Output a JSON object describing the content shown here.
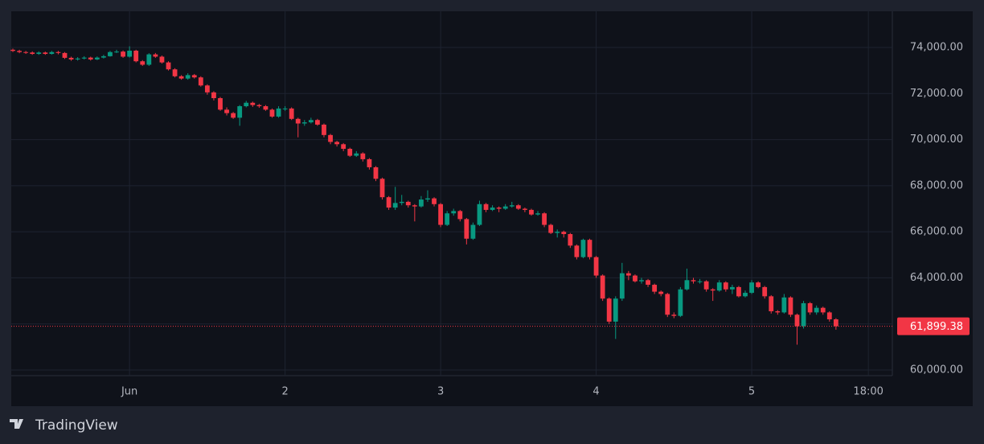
{
  "chart_data": {
    "type": "candlestick",
    "x": [
      -18,
      -17,
      -16,
      -15,
      -14,
      -13,
      -12,
      -11,
      -10,
      -9,
      -8,
      -7,
      -6,
      -5,
      -4,
      -3,
      -2,
      -1,
      0,
      1,
      2,
      3,
      4,
      5,
      6,
      7,
      8,
      9,
      10,
      11,
      12,
      13,
      14,
      15,
      16,
      17,
      18,
      19,
      20,
      21,
      22,
      23,
      24,
      25,
      26,
      27,
      28,
      29,
      30,
      31,
      32,
      33,
      34,
      35,
      36,
      37,
      38,
      39,
      40,
      41,
      42,
      43,
      44,
      45,
      46,
      47,
      48,
      49,
      50,
      51,
      52,
      53,
      54,
      55,
      56,
      57,
      58,
      59,
      60,
      61,
      62,
      63,
      64,
      65,
      66,
      67,
      68,
      69,
      70,
      71,
      72,
      73,
      74,
      75,
      76,
      77,
      78,
      79,
      80,
      81,
      82,
      83,
      84,
      85,
      86,
      87,
      88,
      89,
      90,
      91,
      92,
      93,
      94,
      95,
      96,
      97,
      98,
      99,
      100,
      101,
      102,
      103,
      104,
      105,
      106,
      107,
      108,
      109
    ],
    "open": [
      73900,
      73850,
      73800,
      73780,
      73720,
      73780,
      73720,
      73800,
      73760,
      73550,
      73480,
      73520,
      73560,
      73480,
      73560,
      73620,
      73800,
      73820,
      73600,
      73860,
      73400,
      73250,
      73700,
      73600,
      73350,
      73050,
      72750,
      72650,
      72800,
      72700,
      72350,
      72050,
      71800,
      71300,
      71150,
      70950,
      71450,
      71600,
      71500,
      71450,
      71300,
      71000,
      71350,
      71350,
      70900,
      70700,
      70750,
      70850,
      70650,
      70200,
      69900,
      69800,
      69600,
      69300,
      69400,
      69150,
      68800,
      68300,
      67500,
      67050,
      67250,
      67300,
      67150,
      67100,
      67400,
      67450,
      67200,
      66300,
      66800,
      66900,
      66550,
      65700,
      66300,
      67200,
      66950,
      67050,
      67000,
      67100,
      67150,
      67000,
      66950,
      66750,
      66800,
      66300,
      65950,
      66000,
      65900,
      65400,
      64900,
      65650,
      64900,
      64100,
      63100,
      62100,
      63100,
      64200,
      64100,
      63850,
      63900,
      63700,
      63400,
      63300,
      62400,
      62350,
      63500,
      63900,
      63850,
      63850,
      63500,
      63450,
      63800,
      63500,
      63600,
      63200,
      63350,
      63800,
      63600,
      63200,
      62550,
      62500,
      63150,
      62400,
      61900,
      62900,
      62500,
      62700,
      62500,
      62200
    ],
    "high": [
      73950,
      73900,
      73850,
      73830,
      73830,
      73820,
      73850,
      73850,
      73800,
      73600,
      73580,
      73620,
      73600,
      73610,
      73680,
      73850,
      73900,
      73870,
      74050,
      73900,
      73450,
      73750,
      73760,
      73650,
      73400,
      73100,
      72800,
      72880,
      72850,
      72750,
      72400,
      72100,
      71850,
      71400,
      71200,
      71500,
      71680,
      71650,
      71550,
      71500,
      71350,
      71450,
      71450,
      71400,
      70950,
      70850,
      70950,
      70900,
      70700,
      70250,
      69950,
      69850,
      69650,
      69500,
      69450,
      69200,
      68850,
      68350,
      67550,
      67950,
      67600,
      67350,
      67200,
      67550,
      67800,
      67500,
      67250,
      66900,
      67000,
      66950,
      66600,
      66400,
      67350,
      67250,
      67150,
      67100,
      67200,
      67300,
      67200,
      67050,
      67000,
      66900,
      66850,
      66350,
      66100,
      66050,
      65950,
      65450,
      65700,
      65700,
      64950,
      64150,
      63150,
      63200,
      64650,
      64300,
      64150,
      64000,
      63950,
      63750,
      63450,
      63350,
      62500,
      63600,
      64400,
      64000,
      63950,
      63900,
      63550,
      63900,
      63850,
      63700,
      63650,
      63450,
      63900,
      63850,
      63650,
      63250,
      62600,
      63300,
      63200,
      62450,
      63000,
      62950,
      62800,
      62750,
      62550,
      62250
    ],
    "low": [
      73800,
      73750,
      73720,
      73680,
      73680,
      73680,
      73690,
      73700,
      73500,
      73420,
      73430,
      73480,
      73430,
      73450,
      73520,
      73600,
      73760,
      73550,
      73560,
      73350,
      73200,
      73200,
      73550,
      73300,
      73000,
      72700,
      72600,
      72600,
      72650,
      72300,
      71950,
      71700,
      71250,
      71050,
      70900,
      70600,
      71400,
      71420,
      71380,
      71250,
      70950,
      70950,
      71250,
      70850,
      70100,
      70600,
      70700,
      70600,
      70100,
      69800,
      69700,
      69500,
      69250,
      69250,
      69050,
      68700,
      68200,
      67400,
      66950,
      66950,
      67150,
      67050,
      66450,
      67050,
      67300,
      67100,
      66200,
      66250,
      66700,
      66450,
      65450,
      65650,
      66250,
      66850,
      66900,
      66850,
      66950,
      67050,
      66950,
      66850,
      66700,
      66700,
      66200,
      65900,
      65750,
      65750,
      65300,
      64800,
      64850,
      64800,
      64000,
      63000,
      62000,
      61350,
      63000,
      63900,
      63800,
      63750,
      63600,
      63300,
      63200,
      62300,
      62250,
      62300,
      63450,
      63750,
      63750,
      63400,
      63000,
      63400,
      63400,
      63300,
      63150,
      63150,
      63300,
      63550,
      63100,
      62450,
      62400,
      62450,
      62300,
      61100,
      61800,
      62400,
      62400,
      62400,
      62100,
      61750
    ],
    "close": [
      73850,
      73800,
      73780,
      73720,
      73780,
      73720,
      73800,
      73760,
      73550,
      73480,
      73520,
      73560,
      73480,
      73560,
      73620,
      73800,
      73820,
      73600,
      73860,
      73400,
      73250,
      73700,
      73600,
      73350,
      73050,
      72750,
      72650,
      72800,
      72700,
      72350,
      72050,
      71800,
      71300,
      71150,
      70950,
      71450,
      71600,
      71500,
      71450,
      71300,
      71000,
      71350,
      71350,
      70900,
      70700,
      70750,
      70850,
      70650,
      70200,
      69900,
      69800,
      69600,
      69300,
      69400,
      69150,
      68800,
      68300,
      67500,
      67050,
      67250,
      67300,
      67150,
      67100,
      67400,
      67450,
      67200,
      66300,
      66800,
      66900,
      66550,
      65700,
      66300,
      67200,
      66950,
      67050,
      67000,
      67100,
      67150,
      67000,
      66950,
      66750,
      66800,
      66300,
      65950,
      66000,
      65900,
      65400,
      64900,
      65650,
      64900,
      64100,
      63100,
      62100,
      63100,
      64200,
      64100,
      63850,
      63900,
      63700,
      63400,
      63300,
      62400,
      62350,
      63500,
      63900,
      63850,
      63850,
      63500,
      63450,
      63800,
      63500,
      63600,
      63200,
      63350,
      63800,
      63600,
      63200,
      62550,
      62500,
      63150,
      62400,
      61900,
      62900,
      62500,
      62700,
      62500,
      62200,
      61899.38
    ],
    "up_color": "#089981",
    "down_color": "#f23645",
    "xlim": [
      -18.25,
      117.7
    ],
    "xticks": [
      {
        "value": 0,
        "label": "Jun"
      },
      {
        "value": 24,
        "label": "2"
      },
      {
        "value": 48,
        "label": "3"
      },
      {
        "value": 72,
        "label": "4"
      },
      {
        "value": 96,
        "label": "5"
      },
      {
        "value": 114,
        "label": "18:00"
      }
    ],
    "ylim": [
      59756,
      75571
    ],
    "yticks": [
      {
        "value": 60000,
        "label": "60,000.00"
      },
      {
        "value": 62000,
        "label": "62,000.00"
      },
      {
        "value": 64000,
        "label": "64,000.00"
      },
      {
        "value": 66000,
        "label": "66,000.00"
      },
      {
        "value": 68000,
        "label": "68,000.00"
      },
      {
        "value": 70000,
        "label": "70,000.00"
      },
      {
        "value": 72000,
        "label": "72,000.00"
      },
      {
        "value": 74000,
        "label": "74,000.00"
      }
    ],
    "grid": true,
    "last_price": {
      "value": 61899.38,
      "label": "61,899.38"
    }
  },
  "branding": "TradingView"
}
